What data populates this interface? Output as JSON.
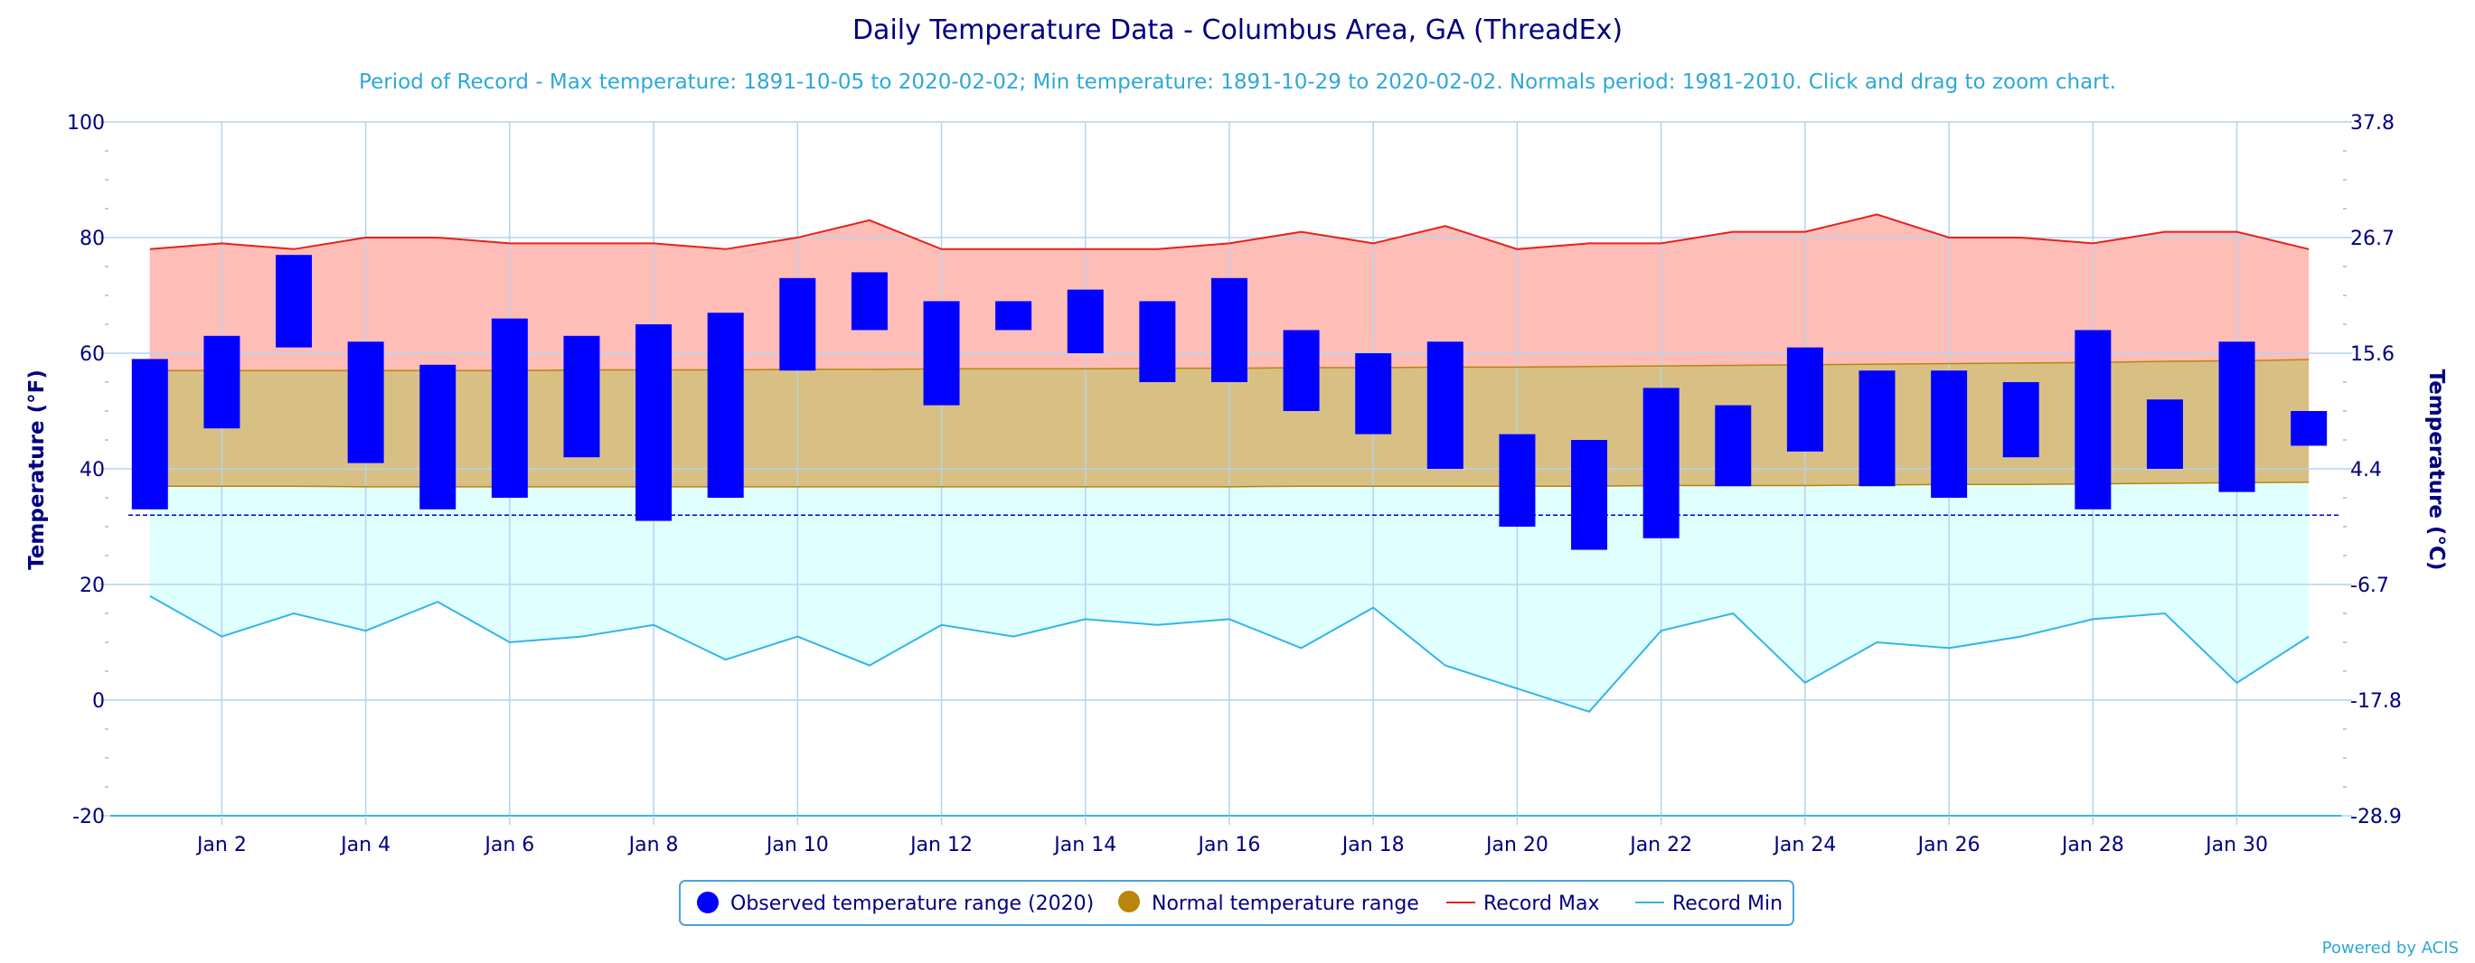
{
  "title": "Daily Temperature Data - Columbus Area, GA (ThreadEx)",
  "subtitle": "Period of Record - Max temperature: 1891-10-05 to 2020-02-02; Min temperature: 1891-10-29 to 2020-02-02. Normals period: 1981-2010. Click and drag to zoom chart.",
  "credit": "Powered by ACIS",
  "colors": {
    "title": "#000080",
    "subtitle": "#2ea8d6",
    "observed": "#0000ff",
    "normal_fill": "#d8c084",
    "normal_line": "#b8860b",
    "record_max_fill": "#ffbdb8",
    "record_max_line": "#e8201a",
    "record_min_fill": "#e0ffff",
    "record_min_line": "#33b5e8",
    "grid": "#b7d3ec",
    "freezing_line": "#0000cc"
  },
  "chart_data": {
    "type": "bar",
    "title": "Daily Temperature Data - Columbus Area, GA (ThreadEx)",
    "ylabel_left": "Temperature (°F)",
    "ylabel_right": "Temperature (°C)",
    "ylim": [
      -20,
      100
    ],
    "y_ticks_left": [
      "100",
      "80",
      "60",
      "40",
      "20",
      "0",
      "-20"
    ],
    "y_tick_values": [
      100,
      80,
      60,
      40,
      20,
      0,
      -20
    ],
    "y_ticks_right": [
      "37.8",
      "26.7",
      "15.6",
      "4.4",
      "-6.7",
      "-17.8",
      "-28.9"
    ],
    "x_tick_labels": [
      "Jan 2",
      "Jan 4",
      "Jan 6",
      "Jan 8",
      "Jan 10",
      "Jan 12",
      "Jan 14",
      "Jan 16",
      "Jan 18",
      "Jan 20",
      "Jan 22",
      "Jan 24",
      "Jan 26",
      "Jan 28",
      "Jan 30"
    ],
    "x_tick_days": [
      2,
      4,
      6,
      8,
      10,
      12,
      14,
      16,
      18,
      20,
      22,
      24,
      26,
      28,
      30
    ],
    "xlim_days": [
      0.45,
      31.45
    ],
    "freezing_line": 32,
    "legend_position": "bottom-center",
    "legend": [
      "Observed temperature range (2020)",
      "Normal temperature range",
      "Record Max",
      "Record Min"
    ],
    "days": [
      1,
      2,
      3,
      4,
      5,
      6,
      7,
      8,
      9,
      10,
      11,
      12,
      13,
      14,
      15,
      16,
      17,
      18,
      19,
      20,
      21,
      22,
      23,
      24,
      25,
      26,
      27,
      28,
      29,
      30,
      31
    ],
    "observed": [
      {
        "day": 1,
        "low": 33,
        "high": 59
      },
      {
        "day": 2,
        "low": 47,
        "high": 63
      },
      {
        "day": 3,
        "low": 61,
        "high": 77
      },
      {
        "day": 4,
        "low": 41,
        "high": 62
      },
      {
        "day": 5,
        "low": 33,
        "high": 58
      },
      {
        "day": 6,
        "low": 35,
        "high": 66
      },
      {
        "day": 7,
        "low": 42,
        "high": 63
      },
      {
        "day": 8,
        "low": 31,
        "high": 65
      },
      {
        "day": 9,
        "low": 35,
        "high": 67
      },
      {
        "day": 10,
        "low": 57,
        "high": 73
      },
      {
        "day": 11,
        "low": 64,
        "high": 74
      },
      {
        "day": 12,
        "low": 51,
        "high": 69
      },
      {
        "day": 13,
        "low": 64,
        "high": 69
      },
      {
        "day": 14,
        "low": 60,
        "high": 71
      },
      {
        "day": 15,
        "low": 55,
        "high": 69
      },
      {
        "day": 16,
        "low": 55,
        "high": 73
      },
      {
        "day": 17,
        "low": 50,
        "high": 64
      },
      {
        "day": 18,
        "low": 46,
        "high": 60
      },
      {
        "day": 19,
        "low": 40,
        "high": 62
      },
      {
        "day": 20,
        "low": 30,
        "high": 46
      },
      {
        "day": 21,
        "low": 26,
        "high": 45
      },
      {
        "day": 22,
        "low": 28,
        "high": 54
      },
      {
        "day": 23,
        "low": 37,
        "high": 51
      },
      {
        "day": 24,
        "low": 43,
        "high": 61
      },
      {
        "day": 25,
        "low": 37,
        "high": 57
      },
      {
        "day": 26,
        "low": 35,
        "high": 57
      },
      {
        "day": 27,
        "low": 42,
        "high": 55
      },
      {
        "day": 28,
        "low": 33,
        "high": 64
      },
      {
        "day": 29,
        "low": 40,
        "high": 52
      },
      {
        "day": 30,
        "low": 36,
        "high": 62
      },
      {
        "day": 31,
        "low": 44,
        "high": 50
      }
    ],
    "normal_high": [
      57.0,
      57.0,
      57.0,
      57.0,
      57.0,
      57.0,
      57.1,
      57.1,
      57.1,
      57.2,
      57.2,
      57.3,
      57.3,
      57.3,
      57.4,
      57.4,
      57.5,
      57.5,
      57.6,
      57.6,
      57.7,
      57.8,
      57.9,
      58.0,
      58.1,
      58.2,
      58.3,
      58.4,
      58.6,
      58.7,
      58.9
    ],
    "normal_low": [
      37.0,
      37.0,
      37.0,
      36.9,
      36.9,
      36.9,
      36.9,
      36.9,
      36.9,
      36.9,
      36.9,
      36.9,
      36.9,
      36.9,
      36.9,
      36.9,
      37.0,
      37.0,
      37.0,
      37.0,
      37.0,
      37.1,
      37.1,
      37.1,
      37.2,
      37.3,
      37.3,
      37.4,
      37.5,
      37.6,
      37.7
    ],
    "record_max": [
      78,
      79,
      78,
      80,
      80,
      79,
      79,
      79,
      78,
      80,
      83,
      78,
      78,
      78,
      78,
      79,
      81,
      79,
      82,
      78,
      79,
      79,
      81,
      81,
      84,
      80,
      80,
      79,
      81,
      81,
      78
    ],
    "record_min": [
      18,
      11,
      15,
      12,
      17,
      10,
      11,
      13,
      7,
      11,
      6,
      13,
      11,
      14,
      13,
      14,
      9,
      16,
      6,
      2,
      -2,
      12,
      15,
      3,
      10,
      9,
      11,
      14,
      15,
      3,
      11
    ]
  }
}
